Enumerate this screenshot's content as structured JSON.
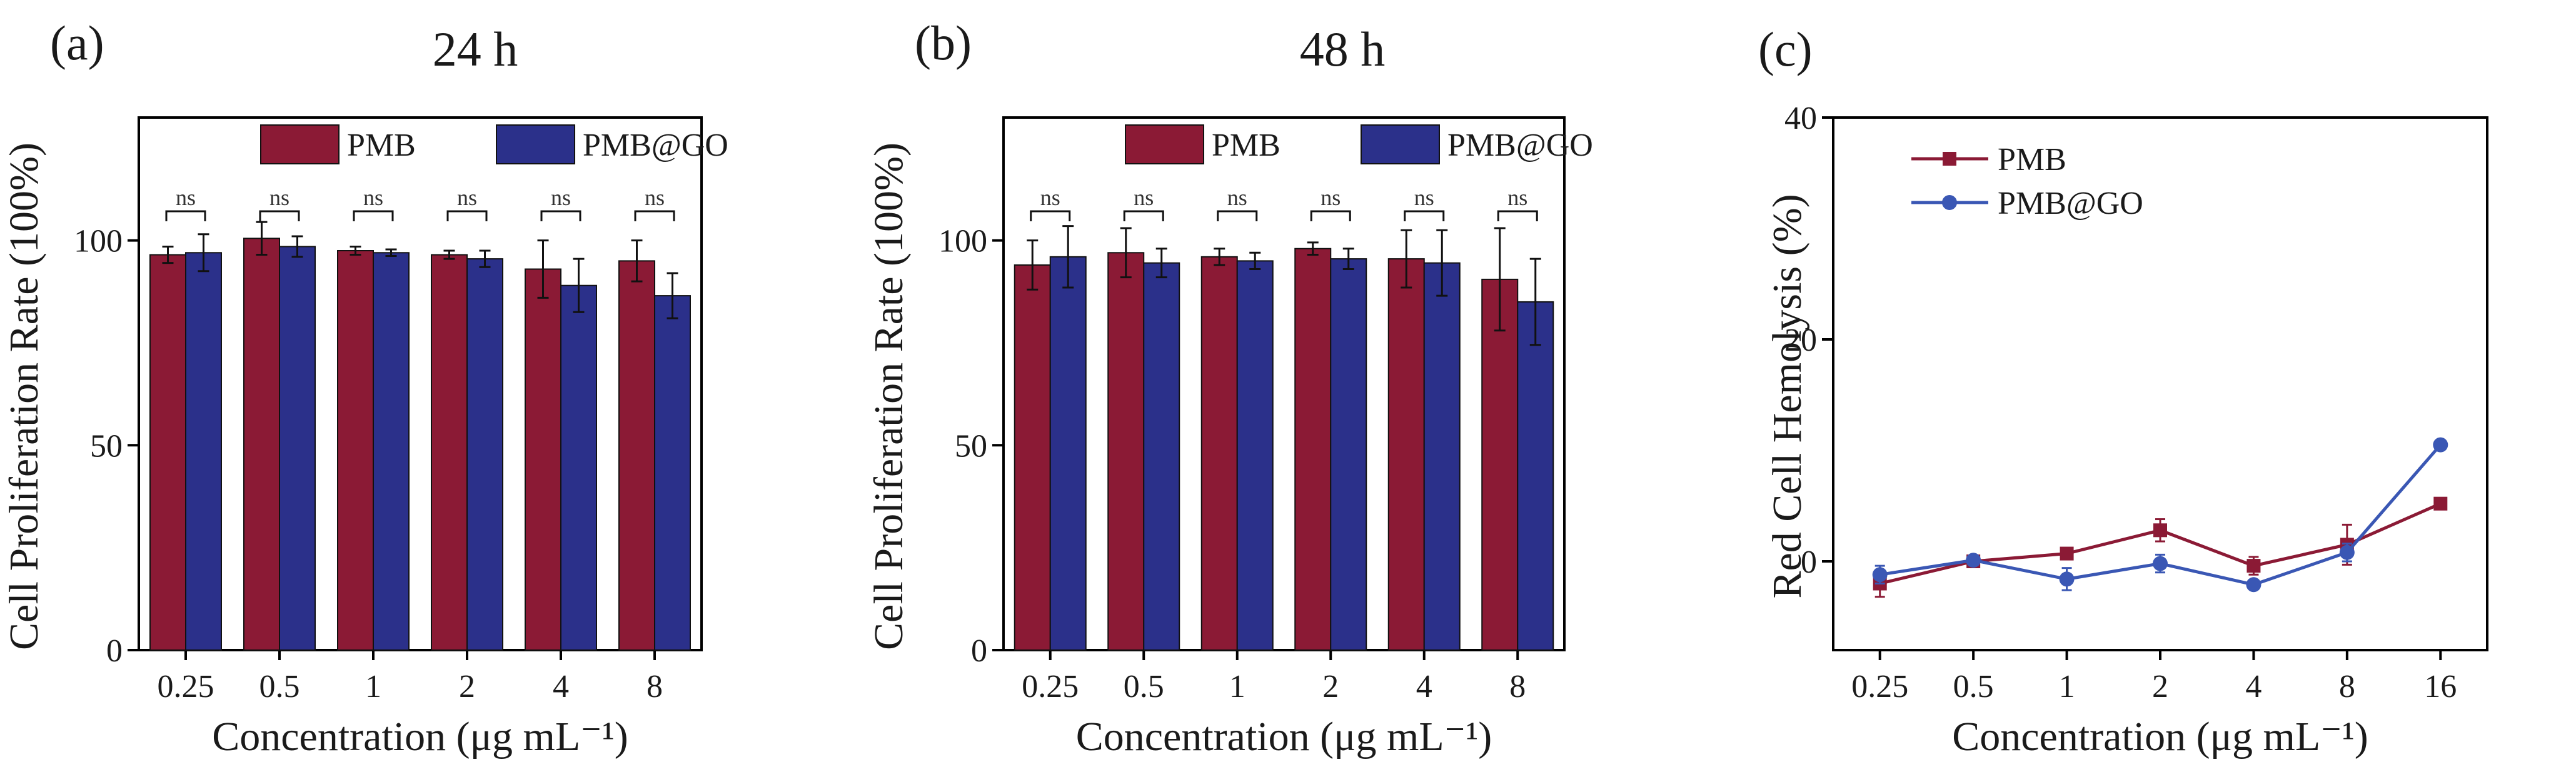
{
  "colors": {
    "pmb": "#8b1a35",
    "pmb_go": "#2b308a",
    "axis": "#000000",
    "text": "#1a1a1a"
  },
  "chart_data": [
    {
      "type": "bar",
      "panel": "(a)",
      "title": "24 h",
      "xlabel": "Concentration (μg mL⁻¹)",
      "ylabel": "Cell Proliferation Rate (100%)",
      "ylim": [
        0,
        130
      ],
      "yticks": [
        "0",
        "50",
        "100"
      ],
      "categories": [
        "0.25",
        "0.5",
        "1",
        "2",
        "4",
        "8"
      ],
      "legend": "top-center",
      "significance": [
        "ns",
        "ns",
        "ns",
        "ns",
        "ns",
        "ns"
      ],
      "series": [
        {
          "name": "PMB",
          "values": [
            96.5,
            100.5,
            97.5,
            96.5,
            93,
            95
          ],
          "errors": [
            2,
            4,
            1,
            1,
            7,
            5
          ]
        },
        {
          "name": "PMB@GO",
          "values": [
            97,
            98.5,
            97,
            95.5,
            89,
            86.5
          ],
          "errors": [
            4.5,
            2.5,
            0.8,
            2,
            6.5,
            5.5
          ]
        }
      ]
    },
    {
      "type": "bar",
      "panel": "(b)",
      "title": "48 h",
      "xlabel": "Concentration (μg mL⁻¹)",
      "ylabel": "Cell Proliferation Rate (100%)",
      "ylim": [
        0,
        130
      ],
      "yticks": [
        "0",
        "50",
        "100"
      ],
      "categories": [
        "0.25",
        "0.5",
        "1",
        "2",
        "4",
        "8"
      ],
      "legend": "top-center",
      "significance": [
        "ns",
        "ns",
        "ns",
        "ns",
        "ns",
        "ns"
      ],
      "series": [
        {
          "name": "PMB",
          "values": [
            94,
            97,
            96,
            98,
            95.5,
            90.5
          ],
          "errors": [
            6,
            6,
            2,
            1.5,
            7,
            12.5
          ]
        },
        {
          "name": "PMB@GO",
          "values": [
            96,
            94.5,
            95,
            95.5,
            94.5,
            85
          ],
          "errors": [
            7.5,
            3.5,
            2,
            2.5,
            8,
            10.5
          ]
        }
      ]
    },
    {
      "type": "line",
      "panel": "(c)",
      "title": "",
      "xlabel": "Concentration (μg mL⁻¹)",
      "ylabel": "Red Cell Hemolysis (%)",
      "ylim": [
        -8,
        40
      ],
      "yticks": [
        "0",
        "20",
        "40"
      ],
      "categories": [
        "0.25",
        "0.5",
        "1",
        "2",
        "4",
        "8",
        "16"
      ],
      "legend": "top-left",
      "series": [
        {
          "name": "PMB",
          "marker": "square",
          "values": [
            -2,
            0,
            0.7,
            2.8,
            -0.4,
            1.5,
            5.2
          ],
          "errors": [
            1.2,
            0.3,
            0.4,
            1,
            0.8,
            1.8,
            0.3
          ]
        },
        {
          "name": "PMB@GO",
          "marker": "circle",
          "values": [
            -1.2,
            0.1,
            -1.6,
            -0.2,
            -2.1,
            0.8,
            10.5
          ],
          "errors": [
            0.8,
            0.3,
            1,
            0.8,
            0.3,
            0.8,
            0.3
          ]
        }
      ]
    }
  ]
}
